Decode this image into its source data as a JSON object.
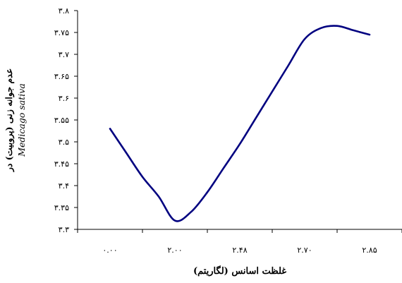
{
  "chart_data": {
    "type": "line",
    "title": "",
    "xlabel": "غلظت اسانس (لگاریتم)",
    "ylabel": "عدم جوانه زنی (پروبیت) در",
    "ylabel_species": "Medicago sativa",
    "x_tick_labels": [
      "۰.۰۰",
      "۲.۰۰",
      "۲.۴۸",
      "۲.۷۰",
      "۲.۸۵"
    ],
    "y_tick_labels": [
      "۳.۳",
      "۳.۳۵",
      "۳.۴",
      "۳.۴۵",
      "۳.۵",
      "۳.۵۵",
      "۳.۶",
      "۳.۶۵",
      "۳.۷",
      "۳.۷۵",
      "۳.۸"
    ],
    "ylim": [
      3.3,
      3.8
    ],
    "grid": false,
    "legend": "none",
    "line_color": "#000080",
    "series": [
      {
        "x_index": [
          0,
          0.25,
          0.5,
          0.75,
          1.0,
          1.25,
          1.5,
          1.75,
          2.0,
          2.25,
          2.5,
          2.75,
          3.0,
          3.25,
          3.5,
          3.75,
          4.0
        ],
        "values": [
          3.53,
          3.475,
          3.42,
          3.375,
          3.32,
          3.34,
          3.385,
          3.44,
          3.495,
          3.555,
          3.615,
          3.675,
          3.735,
          3.76,
          3.765,
          3.755,
          3.745
        ]
      }
    ]
  }
}
